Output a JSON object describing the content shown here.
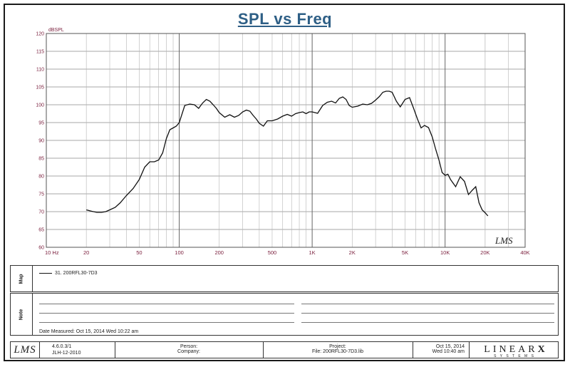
{
  "chart_data": {
    "type": "line",
    "title": "SPL vs Freq",
    "ylabel": "dBSPL",
    "xscale": "log",
    "xlim": [
      10,
      40000
    ],
    "ylim": [
      60,
      120
    ],
    "grid": true,
    "xtick_labels": [
      "10 Hz",
      "20",
      "50",
      "100",
      "200",
      "500",
      "1K",
      "2K",
      "5K",
      "10K",
      "20K",
      "40K"
    ],
    "xtick_values": [
      10,
      20,
      50,
      100,
      200,
      500,
      1000,
      2000,
      5000,
      10000,
      20000,
      40000
    ],
    "ytick_labels": [
      "120",
      "115",
      "110",
      "105",
      "100",
      "95",
      "90",
      "85",
      "80",
      "75",
      "70",
      "65",
      "60"
    ],
    "ytick_values": [
      120,
      115,
      110,
      105,
      100,
      95,
      90,
      85,
      80,
      75,
      70,
      65,
      60
    ],
    "series": [
      {
        "name": "31. 200RFL30-7D3",
        "color": "#111111",
        "x": [
          20,
          22,
          24,
          26,
          28,
          30,
          33,
          36,
          40,
          45,
          50,
          55,
          60,
          65,
          70,
          75,
          80,
          85,
          90,
          95,
          100,
          110,
          120,
          130,
          140,
          150,
          160,
          170,
          180,
          190,
          200,
          220,
          240,
          260,
          280,
          300,
          320,
          340,
          360,
          380,
          400,
          430,
          460,
          500,
          550,
          600,
          650,
          700,
          750,
          800,
          850,
          900,
          950,
          1000,
          1100,
          1200,
          1300,
          1400,
          1500,
          1600,
          1700,
          1800,
          1900,
          2000,
          2200,
          2400,
          2600,
          2800,
          3000,
          3200,
          3400,
          3600,
          3800,
          4000,
          4300,
          4600,
          5000,
          5400,
          5800,
          6200,
          6600,
          7000,
          7500,
          8000,
          8500,
          9000,
          9500,
          10000,
          10500,
          11000,
          12000,
          13000,
          14000,
          15000,
          16000,
          17000,
          18000,
          19000,
          20000,
          21000
        ],
        "y": [
          70.5,
          70.1,
          69.8,
          69.8,
          70.0,
          70.5,
          71.2,
          72.5,
          74.5,
          76.5,
          79.0,
          82.5,
          84.0,
          84.0,
          84.5,
          86.5,
          90.5,
          93.0,
          93.5,
          94.0,
          95.0,
          99.8,
          100.2,
          100.0,
          99.0,
          100.5,
          101.5,
          101.0,
          100.0,
          99.0,
          97.8,
          96.5,
          97.2,
          96.5,
          97.0,
          98.0,
          98.5,
          98.2,
          97.0,
          96.0,
          94.8,
          94.0,
          95.5,
          95.5,
          96.0,
          96.8,
          97.3,
          96.8,
          97.5,
          97.8,
          98.0,
          97.5,
          98.0,
          98.0,
          97.6,
          99.8,
          100.7,
          101.0,
          100.5,
          101.8,
          102.2,
          101.5,
          99.8,
          99.3,
          99.6,
          100.2,
          100.0,
          100.4,
          101.3,
          102.3,
          103.5,
          103.8,
          103.8,
          103.5,
          101.0,
          99.4,
          101.5,
          102.0,
          99.0,
          96.0,
          93.5,
          94.2,
          93.6,
          91.0,
          87.5,
          84.5,
          81.0,
          80.2,
          80.5,
          79.0,
          77.0,
          79.8,
          78.5,
          74.8,
          76.0,
          77.0,
          72.5,
          70.5,
          69.7,
          68.8
        ]
      }
    ],
    "annotations": [
      "LMS"
    ]
  },
  "map_section": {
    "label": "Map",
    "legend_entry": "31. 200RFL30-7D3"
  },
  "note_section": {
    "label": "Note",
    "measured": "Date Measured: Oct 15, 2014   Wed 10:22 am"
  },
  "footer": {
    "logo": "LMS",
    "version": "4.6.0.3/1",
    "version_date": "JLH-12-2010",
    "person_label": "Person:",
    "company_label": "Company:",
    "project_label": "Project:",
    "file_label": "File: 200RFL30-7D3.lib",
    "date": "Oct 15, 2014",
    "time": "Wed 10:40 am",
    "brand": "LINEAR",
    "brand_x": "X",
    "brand_sub": "S Y S T E M S"
  }
}
